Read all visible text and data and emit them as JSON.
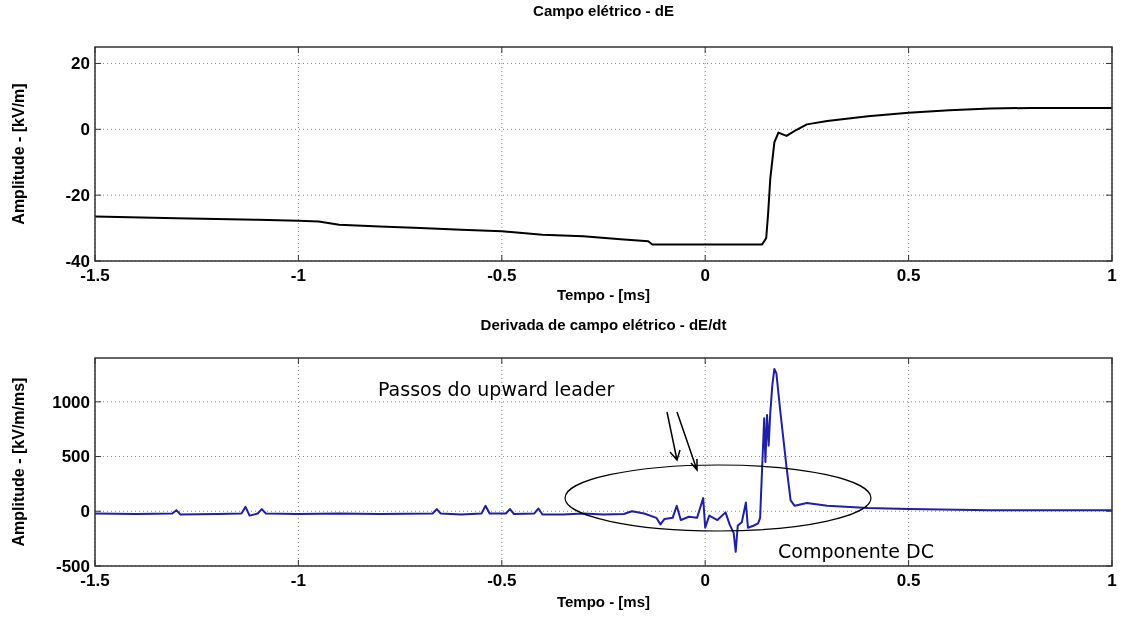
{
  "chart_data": [
    {
      "type": "line",
      "title": "Campo elétrico - dE",
      "xlabel": "Tempo - [ms]",
      "ylabel": "Amplitude - [kV/m]",
      "xlim": [
        -1.5,
        1
      ],
      "xticks": [
        -1.5,
        -1,
        -0.5,
        0,
        0.5,
        1
      ],
      "ylim": [
        -40,
        25
      ],
      "yticks": [
        -40,
        -20,
        0,
        20
      ],
      "grid": true,
      "series": [
        {
          "color": "#000000",
          "x": [
            -1.5,
            -1.3,
            -1.1,
            -1,
            -0.95,
            -0.9,
            -0.8,
            -0.7,
            -0.6,
            -0.5,
            -0.4,
            -0.3,
            -0.2,
            -0.14,
            -0.13,
            0,
            0.14,
            0.15,
            0.155,
            0.16,
            0.17,
            0.18,
            0.2,
            0.22,
            0.25,
            0.3,
            0.4,
            0.5,
            0.6,
            0.7,
            0.8,
            1
          ],
          "values": [
            -26.5,
            -27,
            -27.5,
            -27.8,
            -28,
            -29,
            -29.5,
            -30,
            -30.5,
            -31,
            -32,
            -32.5,
            -33.5,
            -34,
            -35,
            -35,
            -35,
            -33,
            -25,
            -15,
            -4,
            -1,
            -2,
            -0.5,
            1.5,
            2.5,
            4,
            5,
            5.8,
            6.3,
            6.5,
            6.5
          ]
        }
      ]
    },
    {
      "type": "line",
      "title": "Derivada de campo elétrico - dE/dt",
      "xlabel": "Tempo - [ms]",
      "ylabel": "Amplitude - [kV/m/ms]",
      "xlim": [
        -1.5,
        1
      ],
      "xticks": [
        -1.5,
        -1,
        -0.5,
        0,
        0.5,
        1
      ],
      "ylim": [
        -500,
        1400
      ],
      "yticks": [
        -500,
        0,
        500,
        1000
      ],
      "grid": true,
      "annotations": [
        "Passos do upward leader",
        "Componente DC"
      ],
      "series": [
        {
          "color": "#1f1fa8",
          "x": [
            -1.5,
            -1.4,
            -1.31,
            -1.3,
            -1.29,
            -1.2,
            -1.14,
            -1.13,
            -1.12,
            -1.1,
            -1.09,
            -1.08,
            -1,
            -0.9,
            -0.8,
            -0.67,
            -0.66,
            -0.65,
            -0.6,
            -0.55,
            -0.54,
            -0.53,
            -0.49,
            -0.48,
            -0.47,
            -0.42,
            -0.41,
            -0.4,
            -0.35,
            -0.3,
            -0.25,
            -0.2,
            -0.18,
            -0.15,
            -0.12,
            -0.11,
            -0.1,
            -0.08,
            -0.07,
            -0.06,
            -0.04,
            -0.02,
            -0.005,
            0,
            0.01,
            0.03,
            0.05,
            0.06,
            0.07,
            0.075,
            0.08,
            0.09,
            0.1,
            0.105,
            0.12,
            0.13,
            0.135,
            0.14,
            0.145,
            0.148,
            0.152,
            0.156,
            0.16,
            0.165,
            0.17,
            0.175,
            0.185,
            0.2,
            0.21,
            0.22,
            0.25,
            0.3,
            0.4,
            0.5,
            0.7,
            1
          ],
          "values": [
            -20,
            -25,
            -20,
            10,
            -30,
            -25,
            -20,
            40,
            -40,
            -20,
            20,
            -20,
            -25,
            -20,
            -25,
            -20,
            20,
            -20,
            -30,
            -20,
            50,
            -20,
            -20,
            20,
            -25,
            -20,
            25,
            -30,
            -30,
            -20,
            -30,
            -25,
            0,
            -20,
            -60,
            -120,
            -70,
            -60,
            50,
            -80,
            -50,
            -60,
            120,
            -150,
            -40,
            -80,
            -10,
            -120,
            -200,
            -370,
            -130,
            -100,
            80,
            -150,
            -130,
            -110,
            -60,
            400,
            850,
            450,
            880,
            600,
            900,
            1150,
            1300,
            1260,
            900,
            400,
            100,
            50,
            75,
            50,
            30,
            20,
            10,
            10
          ]
        }
      ]
    }
  ]
}
